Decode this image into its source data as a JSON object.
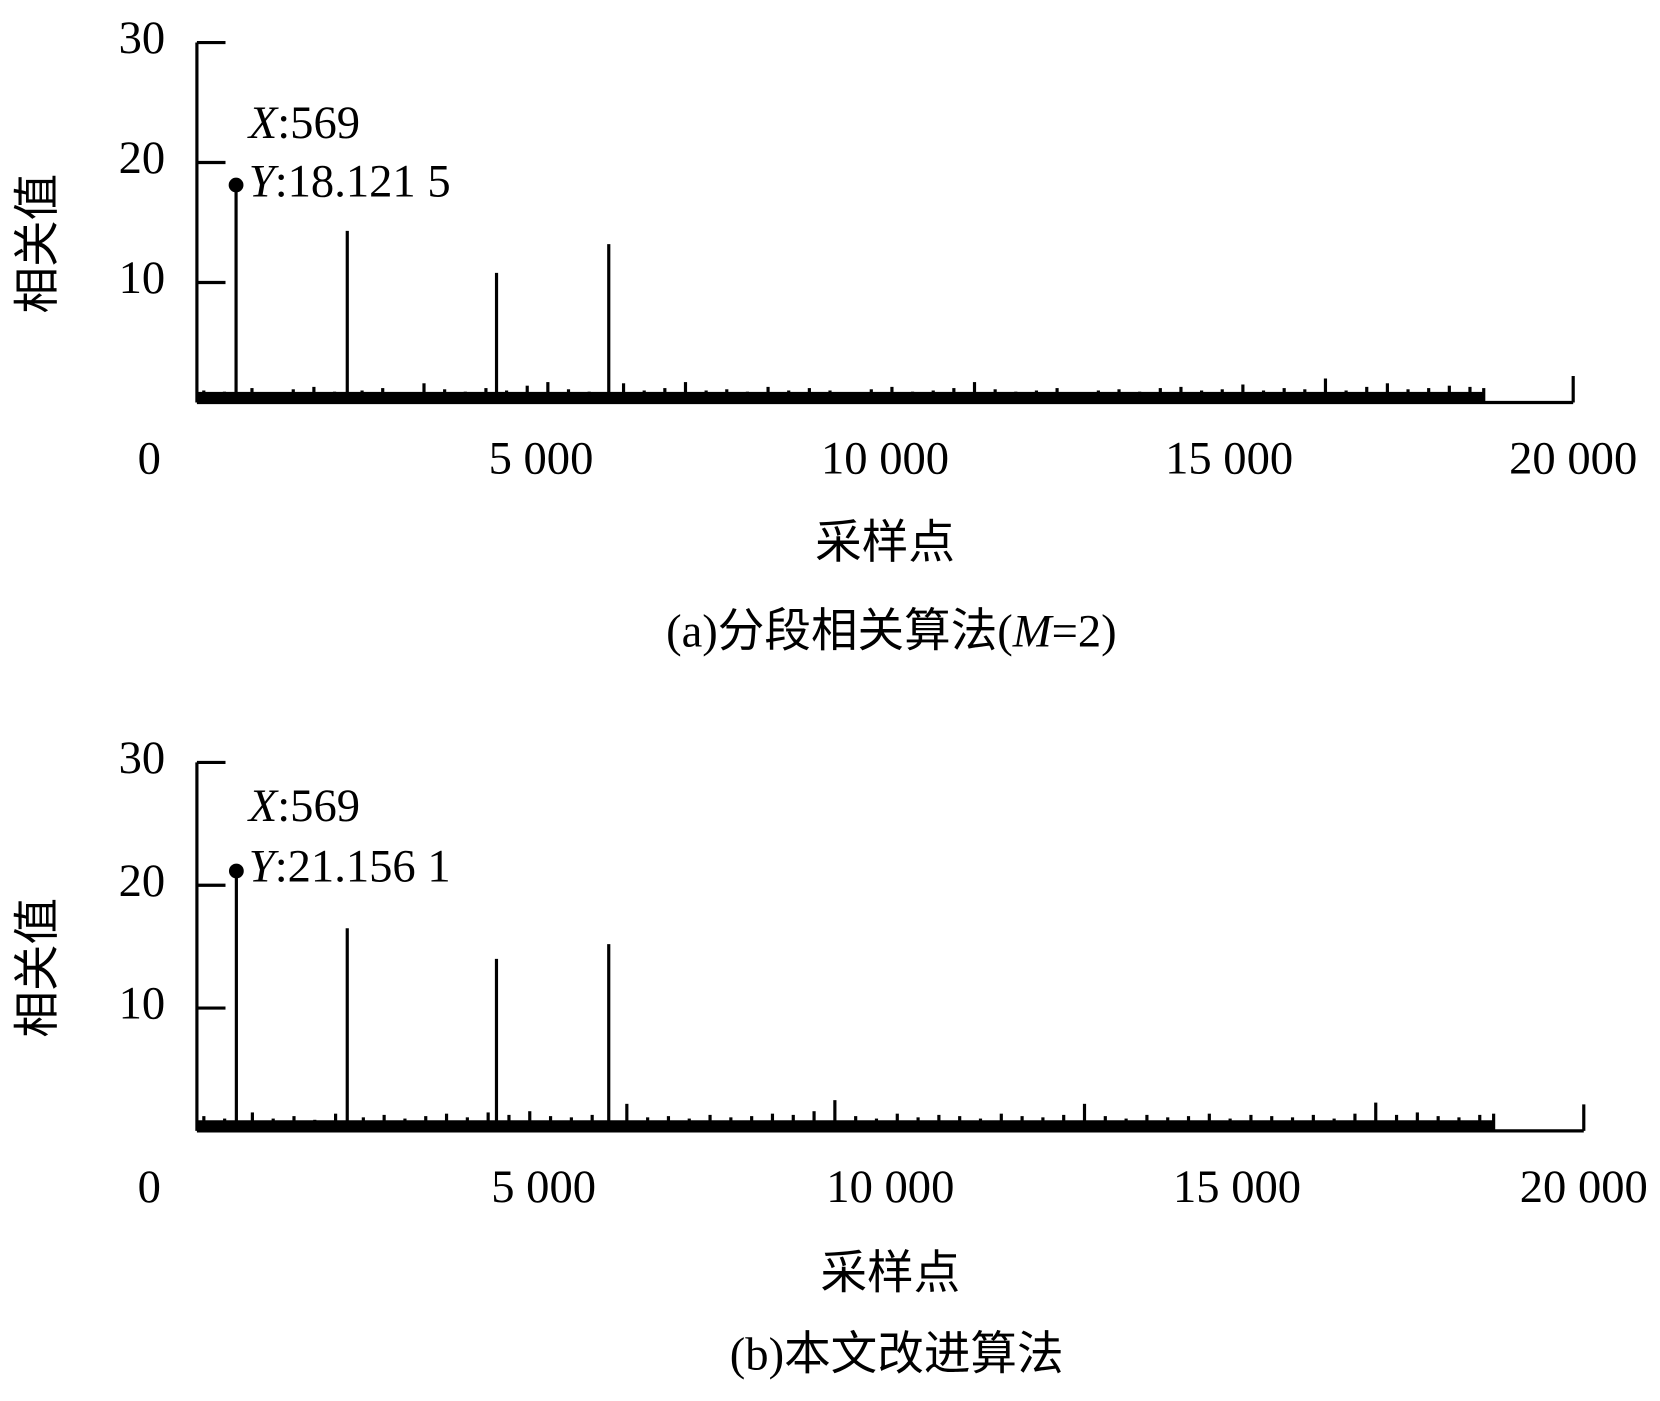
{
  "chart_data": [
    {
      "type": "stem",
      "color": "#000000",
      "x": [
        100,
        400,
        569,
        800,
        1100,
        1400,
        1700,
        2000,
        2185,
        2400,
        2700,
        3000,
        3300,
        3600,
        3900,
        4200,
        4354,
        4500,
        4800,
        5100,
        5400,
        5700,
        5985,
        6200,
        6500,
        6800,
        7100,
        7400,
        7700,
        8000,
        8300,
        8600,
        8900,
        9200,
        9500,
        9800,
        10100,
        10400,
        10700,
        11000,
        11300,
        11600,
        11900,
        12200,
        12500,
        12800,
        13100,
        13400,
        13700,
        14000,
        14300,
        14600,
        14900,
        15200,
        15500,
        15800,
        16100,
        16400,
        16700,
        17000,
        17300,
        17600,
        17900,
        18200,
        18500,
        18700
      ],
      "values": [
        1.0,
        0.9,
        18.1215,
        1.2,
        0.8,
        1.1,
        1.3,
        0.9,
        14.3,
        1.0,
        1.2,
        0.8,
        1.6,
        1.1,
        0.9,
        1.2,
        10.8,
        1.0,
        1.4,
        1.7,
        1.1,
        0.9,
        13.2,
        1.6,
        1.0,
        1.2,
        1.7,
        1.0,
        1.1,
        0.9,
        1.3,
        1.0,
        1.2,
        1.0,
        0.8,
        1.1,
        1.3,
        0.9,
        1.0,
        1.2,
        1.7,
        1.1,
        0.9,
        1.0,
        1.2,
        0.8,
        1.0,
        1.1,
        0.9,
        1.2,
        1.3,
        1.0,
        1.1,
        1.5,
        1.0,
        1.2,
        1.1,
        2.0,
        1.0,
        1.3,
        1.6,
        1.1,
        1.2,
        1.4,
        1.3,
        1.2
      ],
      "xlim": [
        0,
        20000
      ],
      "ylim": [
        0,
        30
      ],
      "xticks": [
        0,
        {
          "value": 5000,
          "label": "5 000"
        },
        {
          "value": 10000,
          "label": "10 000"
        },
        {
          "value": 15000,
          "label": "15 000"
        },
        {
          "value": 20000,
          "label": "20 000"
        }
      ],
      "yticks": [
        10,
        20,
        30
      ],
      "x_label": "采样点",
      "y_label": "相关值",
      "caption": [
        "(a)分段相关算法(",
        "M",
        "=2)"
      ],
      "annotation": {
        "x": 569,
        "y": 18.1215,
        "x_name": "X",
        "x_text": ":569",
        "y_name": "Y",
        "y_text": ":18.121 5"
      }
    },
    {
      "type": "stem",
      "color": "#000000",
      "x": [
        100,
        400,
        569,
        800,
        1100,
        1400,
        1700,
        2000,
        2168,
        2400,
        2700,
        3000,
        3300,
        3600,
        3900,
        4200,
        4320,
        4500,
        4800,
        5100,
        5400,
        5700,
        5939,
        6200,
        6500,
        6800,
        7100,
        7400,
        7700,
        8000,
        8300,
        8600,
        8900,
        9200,
        9500,
        9800,
        10100,
        10400,
        10700,
        11000,
        11300,
        11600,
        11900,
        12200,
        12500,
        12800,
        13100,
        13400,
        13700,
        14000,
        14300,
        14600,
        14900,
        15200,
        15500,
        15800,
        16100,
        16400,
        16700,
        17000,
        17300,
        17600,
        17900,
        18200,
        18500,
        18700
      ],
      "values": [
        1.2,
        1.0,
        21.1561,
        1.5,
        1.0,
        1.2,
        0.9,
        1.4,
        16.5,
        1.1,
        1.3,
        1.0,
        1.2,
        1.4,
        1.1,
        1.5,
        14.0,
        1.3,
        1.6,
        1.2,
        1.1,
        1.3,
        15.2,
        2.2,
        1.1,
        1.2,
        1.0,
        1.3,
        1.1,
        1.2,
        1.4,
        1.3,
        1.6,
        2.5,
        1.2,
        1.0,
        1.4,
        1.1,
        1.3,
        1.2,
        1.0,
        1.4,
        1.2,
        1.1,
        1.3,
        2.2,
        1.2,
        1.0,
        1.3,
        1.1,
        1.2,
        1.4,
        1.0,
        1.3,
        1.2,
        1.1,
        1.3,
        1.0,
        1.4,
        2.3,
        1.3,
        1.5,
        1.2,
        1.1,
        1.3,
        1.4
      ],
      "xlim": [
        0,
        20000
      ],
      "ylim": [
        0,
        30
      ],
      "xticks": [
        0,
        {
          "value": 5000,
          "label": "5 000"
        },
        {
          "value": 10000,
          "label": "10 000"
        },
        {
          "value": 15000,
          "label": "15 000"
        },
        {
          "value": 20000,
          "label": "20 000"
        }
      ],
      "yticks": [
        10,
        20,
        30
      ],
      "x_label": "采样点",
      "y_label": "相关值",
      "caption": [
        "(b)本文改进算法"
      ],
      "annotation": {
        "x": 569,
        "y": 21.1561,
        "x_name": "X",
        "x_text": ":569",
        "y_name": "Y",
        "y_text": ":21.156 1"
      }
    }
  ]
}
